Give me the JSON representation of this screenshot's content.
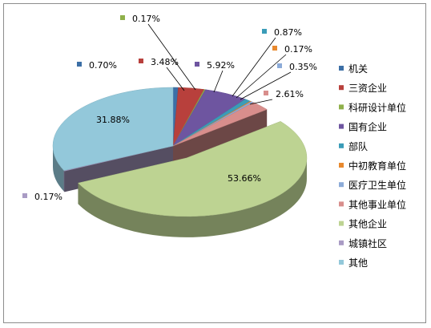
{
  "chart_data": {
    "type": "pie",
    "style": "3d-exploded",
    "title": "",
    "legend_position": "right",
    "slices": [
      {
        "name": "机关",
        "value": 0.7,
        "label": "0.70%",
        "color": "#3c6fa6"
      },
      {
        "name": "三资企业",
        "value": 3.48,
        "label": "3.48%",
        "color": "#b8403c"
      },
      {
        "name": "科研设计单位",
        "value": 0.17,
        "label": "0.17%",
        "color": "#8fb04a"
      },
      {
        "name": "国有企业",
        "value": 5.92,
        "label": "5.92%",
        "color": "#6e55a0"
      },
      {
        "name": "部队",
        "value": 0.87,
        "label": "0.87%",
        "color": "#3a9cb8"
      },
      {
        "name": "中初教育单位",
        "value": 0.17,
        "label": "0.17%",
        "color": "#e8892e"
      },
      {
        "name": "医疗卫生单位",
        "value": 0.35,
        "label": "0.35%",
        "color": "#8cabd8"
      },
      {
        "name": "其他事业单位",
        "value": 2.61,
        "label": "2.61%",
        "color": "#d88e8c"
      },
      {
        "name": "其他企业",
        "value": 53.66,
        "label": "53.66%",
        "color": "#bdd392"
      },
      {
        "name": "城镇社区",
        "value": 0.17,
        "label": "0.17%",
        "color": "#a99bc4"
      },
      {
        "name": "其他",
        "value": 31.88,
        "label": "31.88%",
        "color": "#93c8da"
      }
    ]
  }
}
